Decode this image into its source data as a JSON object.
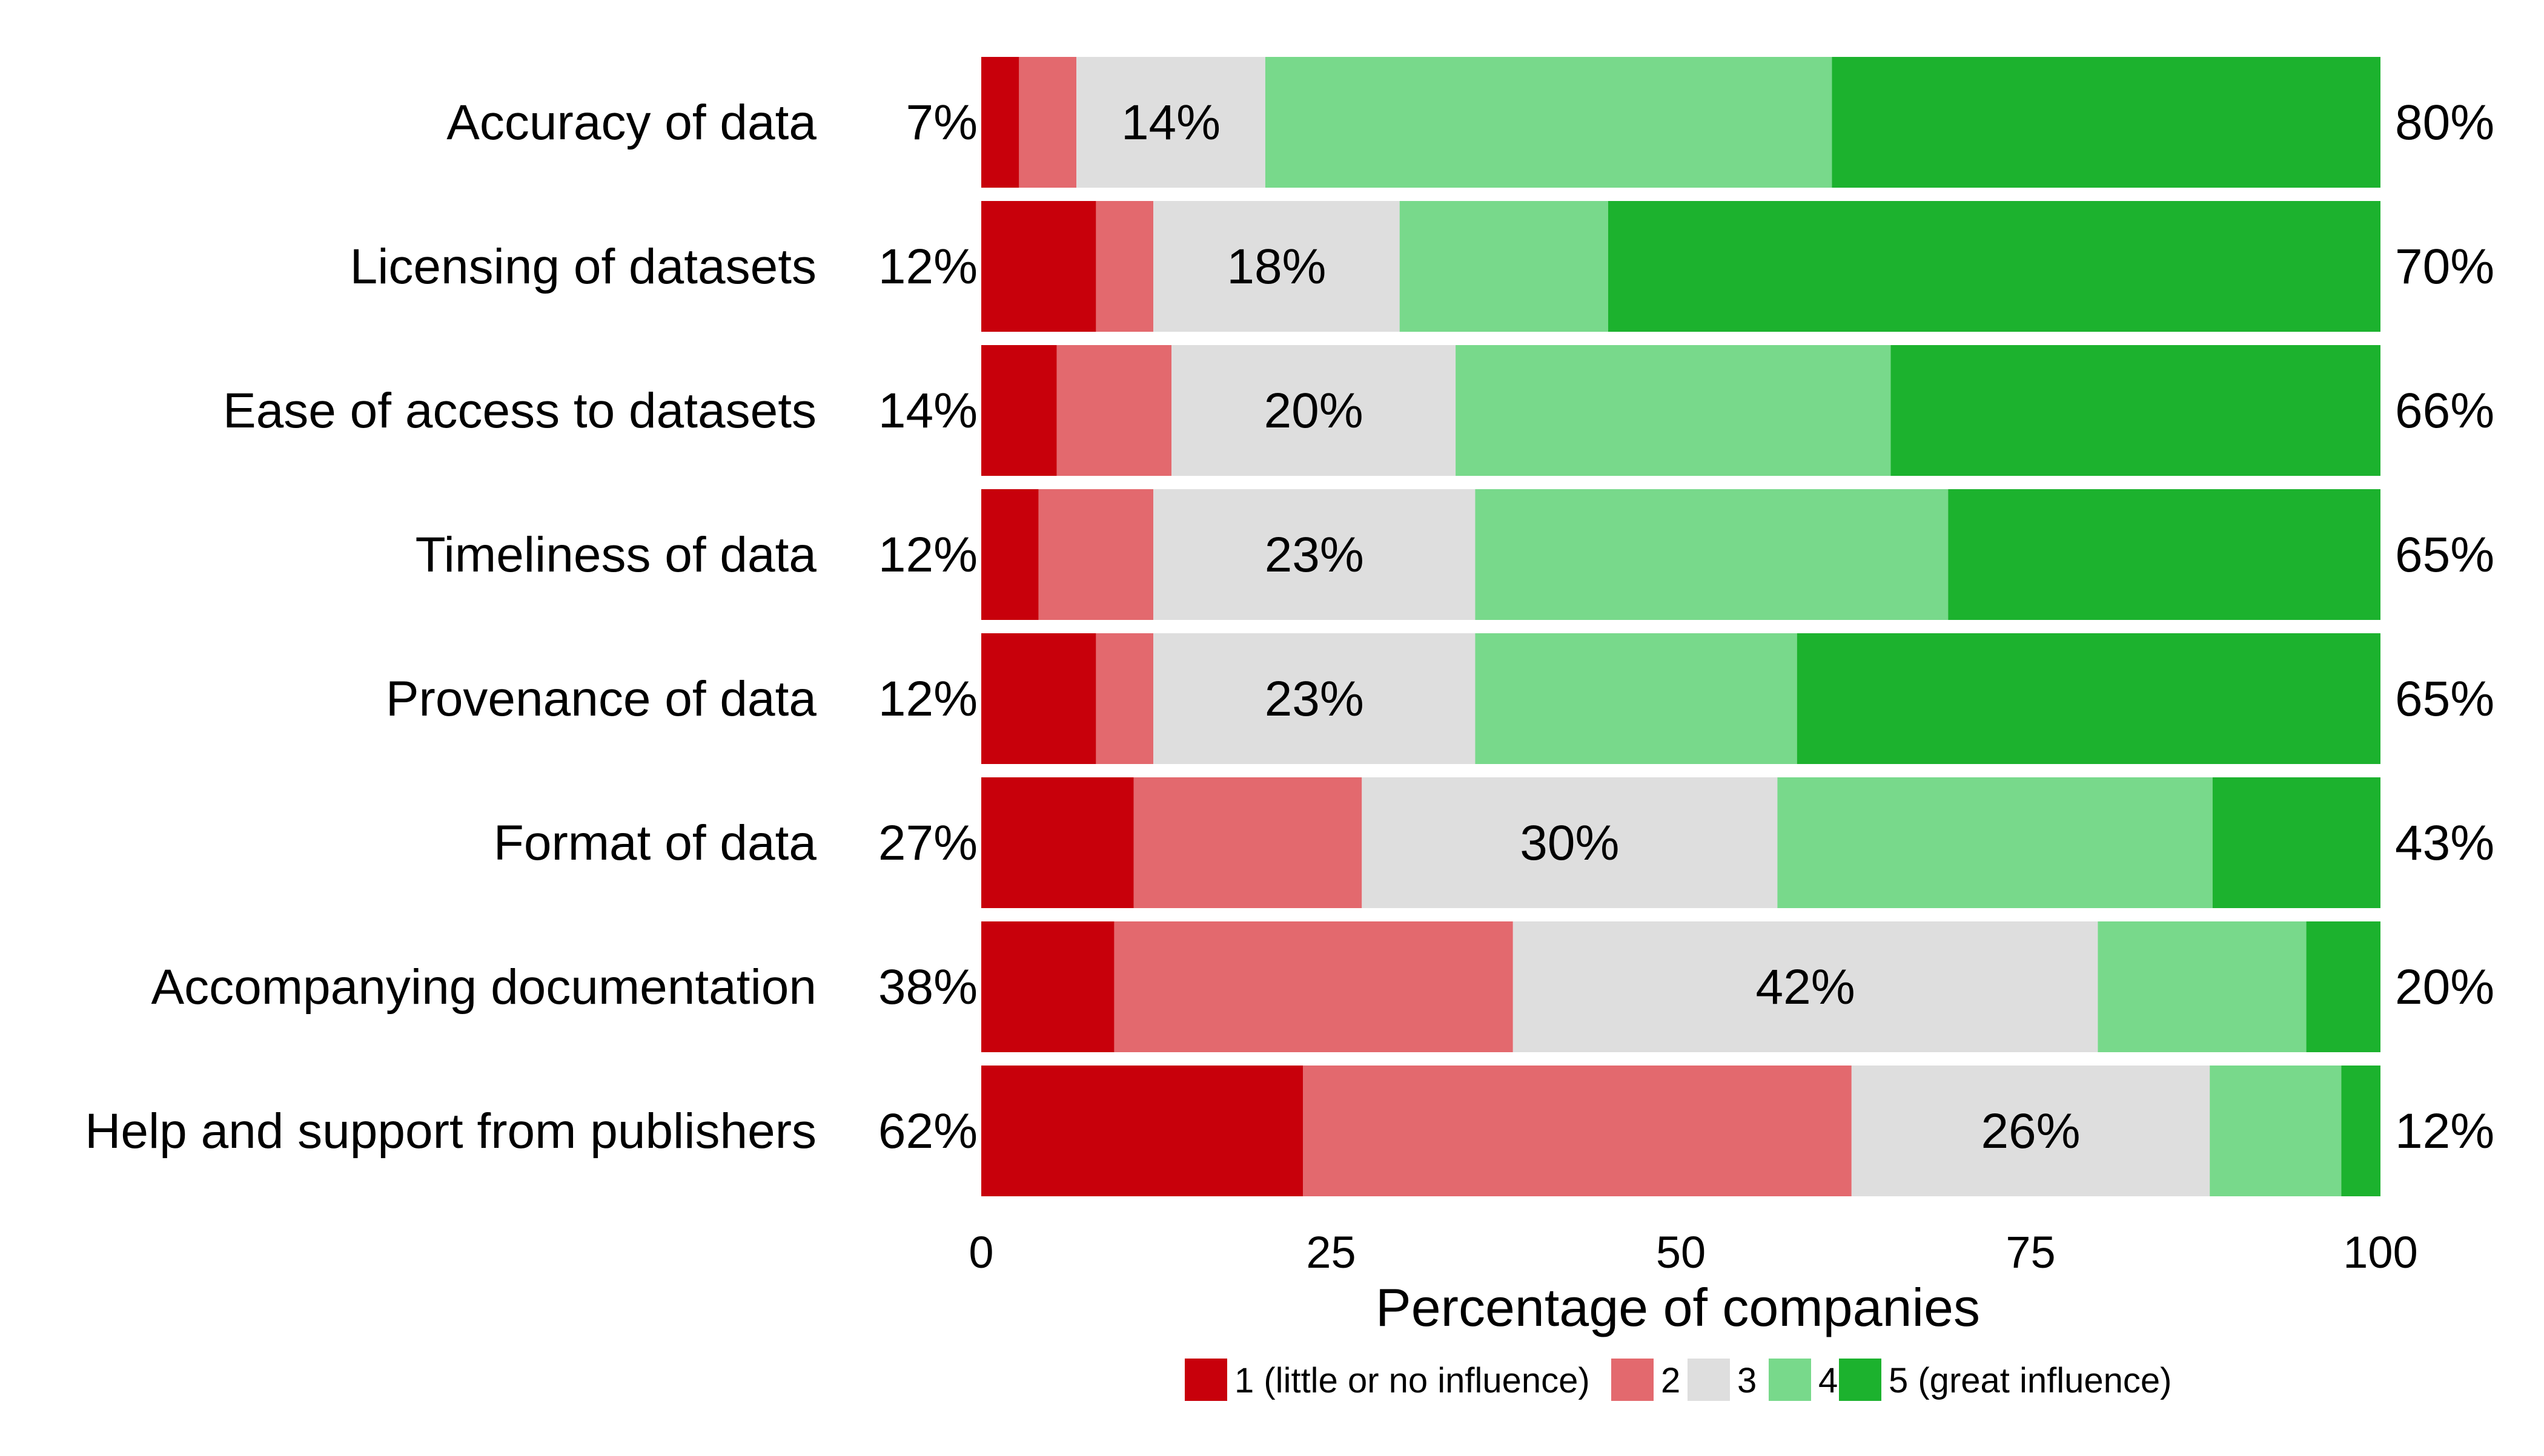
{
  "chart_data": {
    "type": "bar",
    "orientation": "horizontal",
    "stacked": true,
    "xlabel": "Percentage of companies",
    "ylabel": "",
    "xlim": [
      0,
      100
    ],
    "x_ticks": [
      0,
      25,
      50,
      75,
      100
    ],
    "grid": false,
    "legend_position": "bottom",
    "categories": [
      "Accuracy of data",
      "Licensing of datasets",
      "Ease of access to datasets",
      "Timeliness of data",
      "Provenance of data",
      "Format of data",
      "Accompanying documentation",
      "Help and support from publishers"
    ],
    "series": [
      {
        "name": "1 (little or no influence)",
        "color": "#c8000b",
        "values": [
          2.7,
          8.2,
          5.4,
          4.1,
          8.2,
          10.9,
          9.5,
          23.0
        ]
      },
      {
        "name": "2",
        "color": "#e3696e",
        "values": [
          4.1,
          4.1,
          8.2,
          8.2,
          4.1,
          16.3,
          28.5,
          39.2
        ]
      },
      {
        "name": "3",
        "color": "#dedede",
        "values": [
          13.5,
          17.6,
          20.3,
          23.0,
          23.0,
          29.7,
          41.8,
          25.6
        ]
      },
      {
        "name": "4",
        "color": "#78d98b",
        "values": [
          40.5,
          14.9,
          31.1,
          33.8,
          23.0,
          31.1,
          14.9,
          9.4
        ]
      },
      {
        "name": "5 (great influence)",
        "color": "#1cb22e",
        "values": [
          39.2,
          55.2,
          35.0,
          30.9,
          41.7,
          12.0,
          5.3,
          2.8
        ]
      }
    ],
    "left_labels": [
      "7%",
      "12%",
      "14%",
      "12%",
      "12%",
      "27%",
      "38%",
      "62%"
    ],
    "center_labels": [
      "14%",
      "18%",
      "20%",
      "23%",
      "23%",
      "30%",
      "42%",
      "26%"
    ],
    "right_labels": [
      "80%",
      "70%",
      "66%",
      "65%",
      "65%",
      "43%",
      "20%",
      "12%"
    ]
  }
}
